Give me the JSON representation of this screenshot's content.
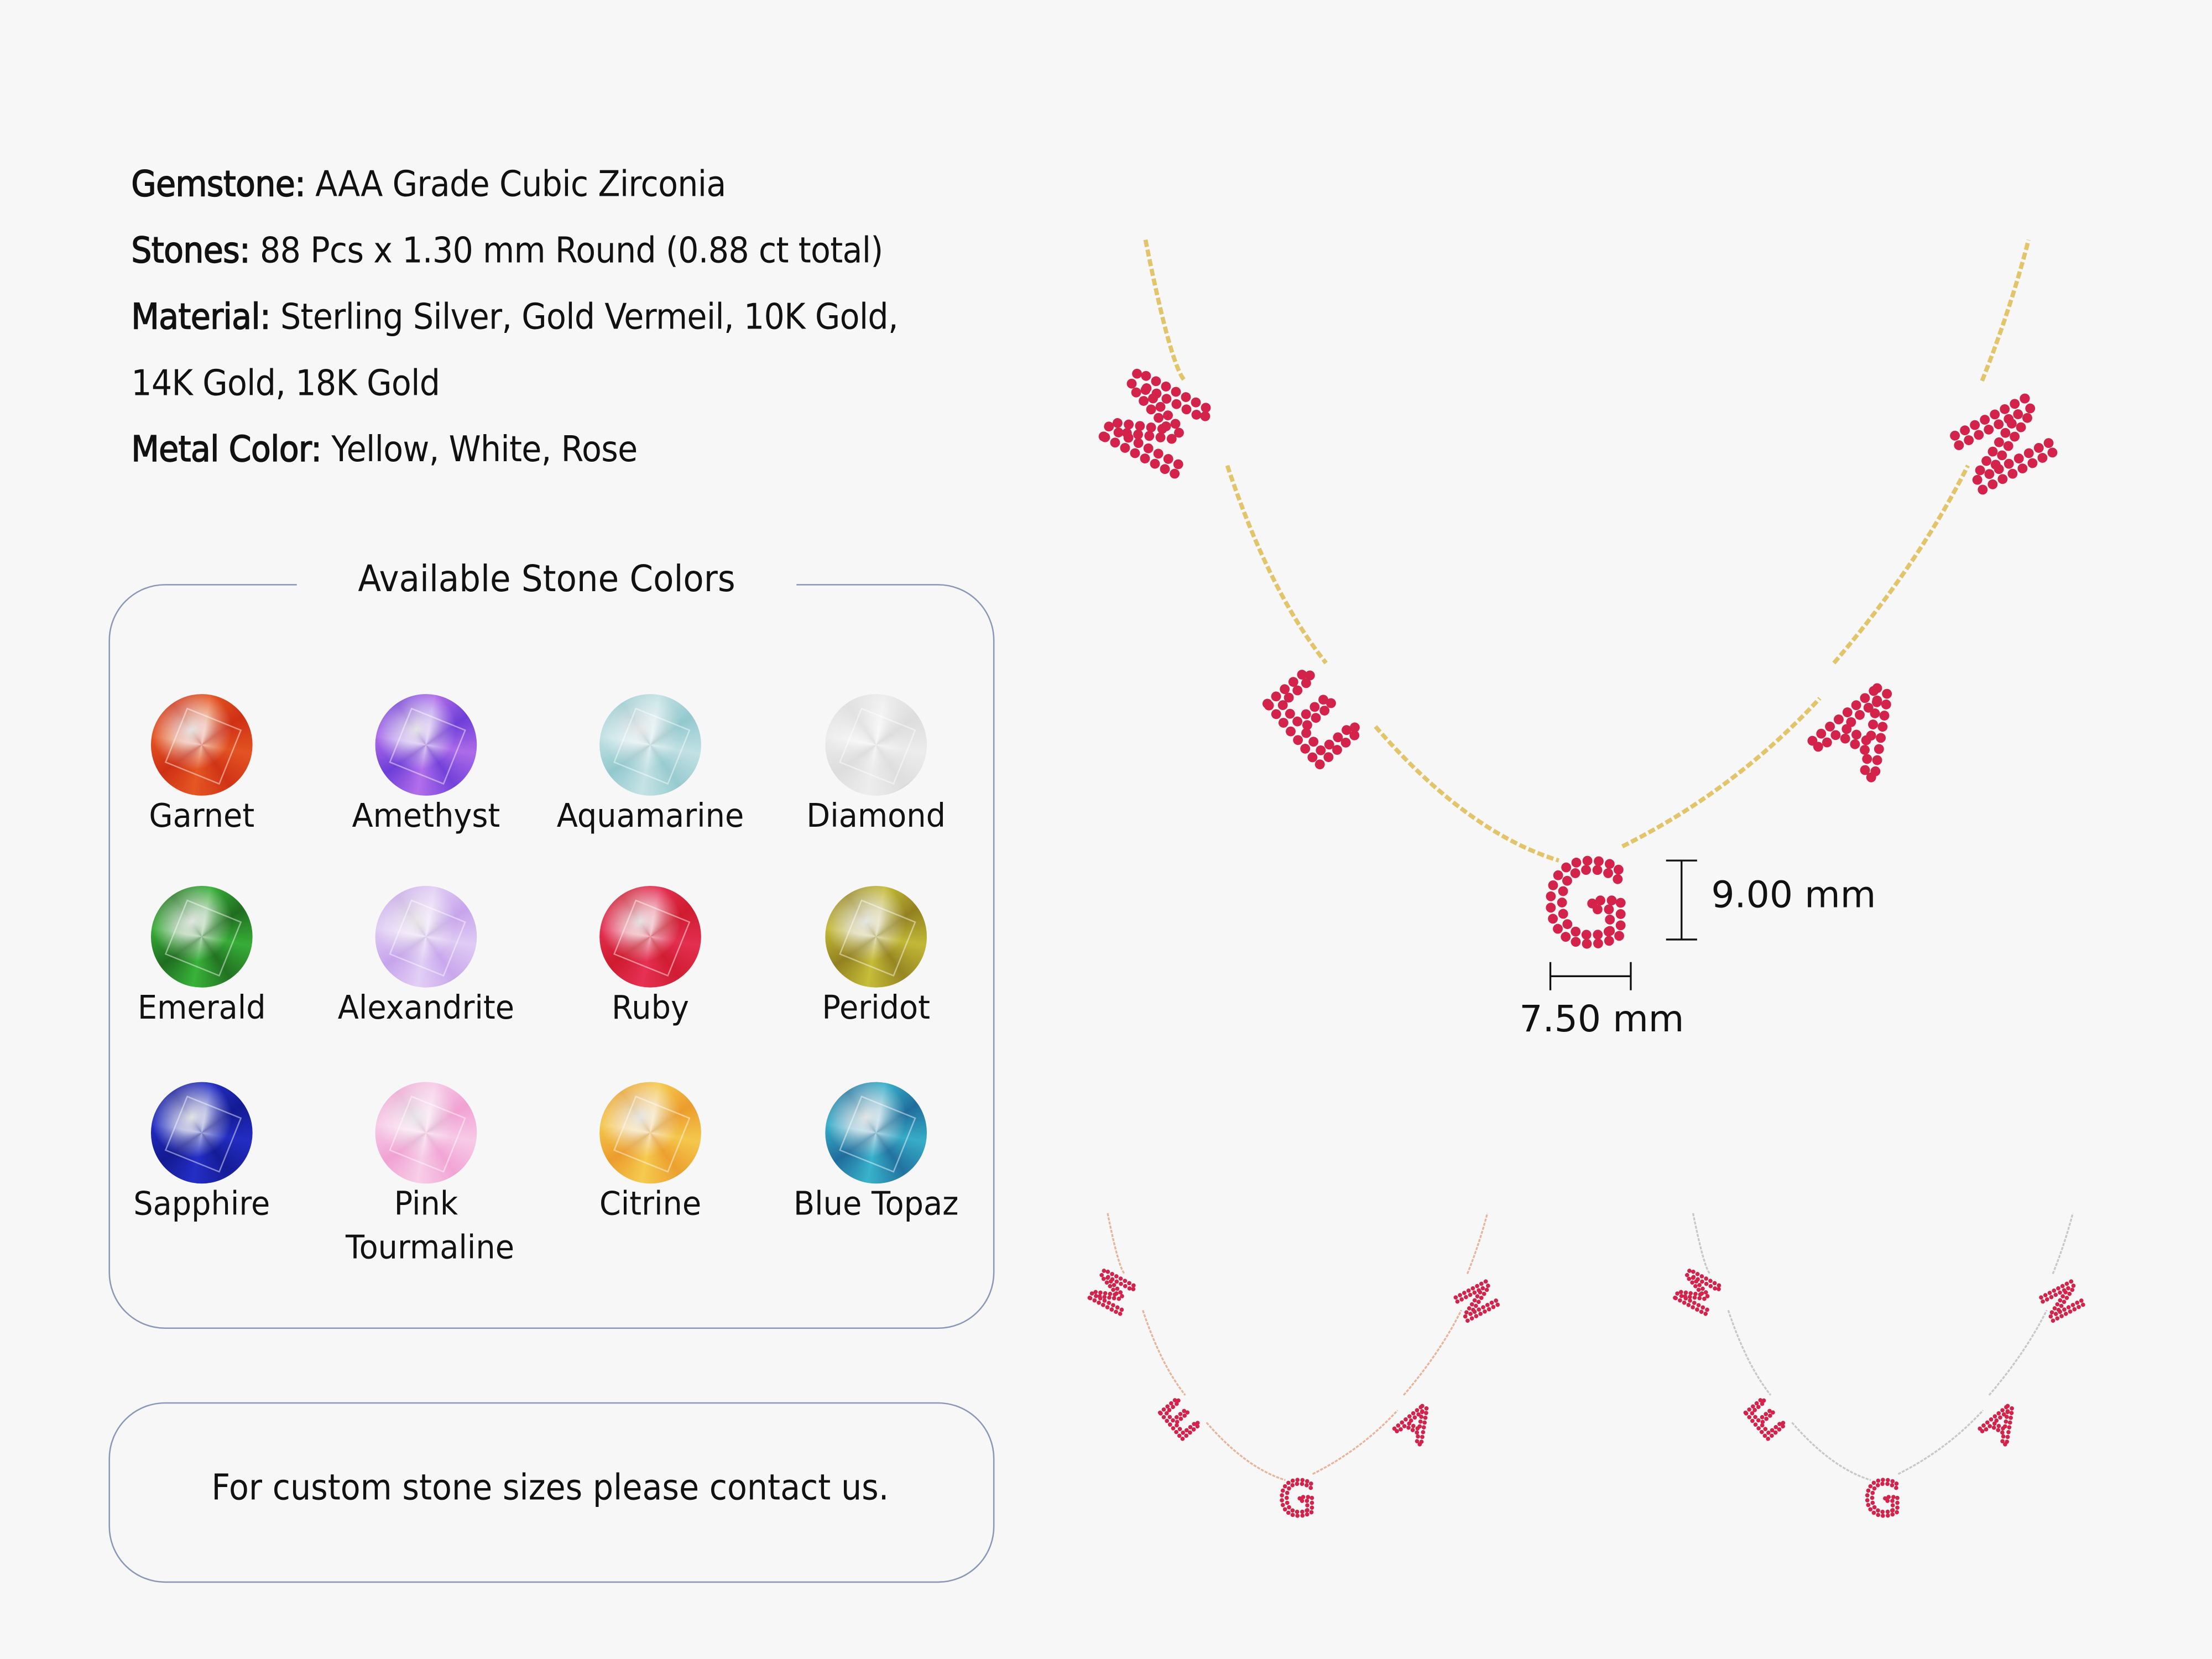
{
  "specs": [
    {
      "label": "Gemstone:",
      "value": " AAA Grade Cubic Zirconia"
    },
    {
      "label": "Stones:",
      "value": " 88 Pcs x 1.30 mm Round (0.88 ct total)"
    },
    {
      "label": "Material:",
      "value": " Sterling Silver, Gold Vermeil, 10K Gold,"
    },
    {
      "label": "",
      "value": "14K Gold, 18K Gold"
    },
    {
      "label": "Metal Color:",
      "value": " Yellow, White, Rose"
    }
  ],
  "stone_colors": {
    "title": "Available Stone Colors",
    "items": [
      {
        "name": "Garnet",
        "color": "#d8401a"
      },
      {
        "name": "Amethyst",
        "color": "#8a52e0"
      },
      {
        "name": "Aquamarine",
        "color": "#a8d4d8"
      },
      {
        "name": "Diamond",
        "color": "#e4e4e4"
      },
      {
        "name": "Emerald",
        "color": "#2a8a2a"
      },
      {
        "name": "Alexandrite",
        "color": "#d2b6f0"
      },
      {
        "name": "Ruby",
        "color": "#d8243e"
      },
      {
        "name": "Peridot",
        "color": "#a89a2a"
      },
      {
        "name": "Sapphire",
        "color": "#1a22a8"
      },
      {
        "name": "Pink Tourmaline",
        "color": "#f4b4dc"
      },
      {
        "name": "Citrine",
        "color": "#f0b03a"
      },
      {
        "name": "Blue Topaz",
        "color": "#2a8ab0"
      }
    ]
  },
  "contact": "For custom stone sizes please contact us.",
  "necklace": {
    "letters": [
      "M",
      "E",
      "G",
      "A",
      "N"
    ],
    "height_label": "9.00 mm",
    "width_label": "7.50 mm",
    "stone_color": "#d4234a",
    "metal_colors": {
      "yellow": "#e2c46a",
      "rose": "#e8b49a",
      "white": "#c8c8c8"
    }
  }
}
